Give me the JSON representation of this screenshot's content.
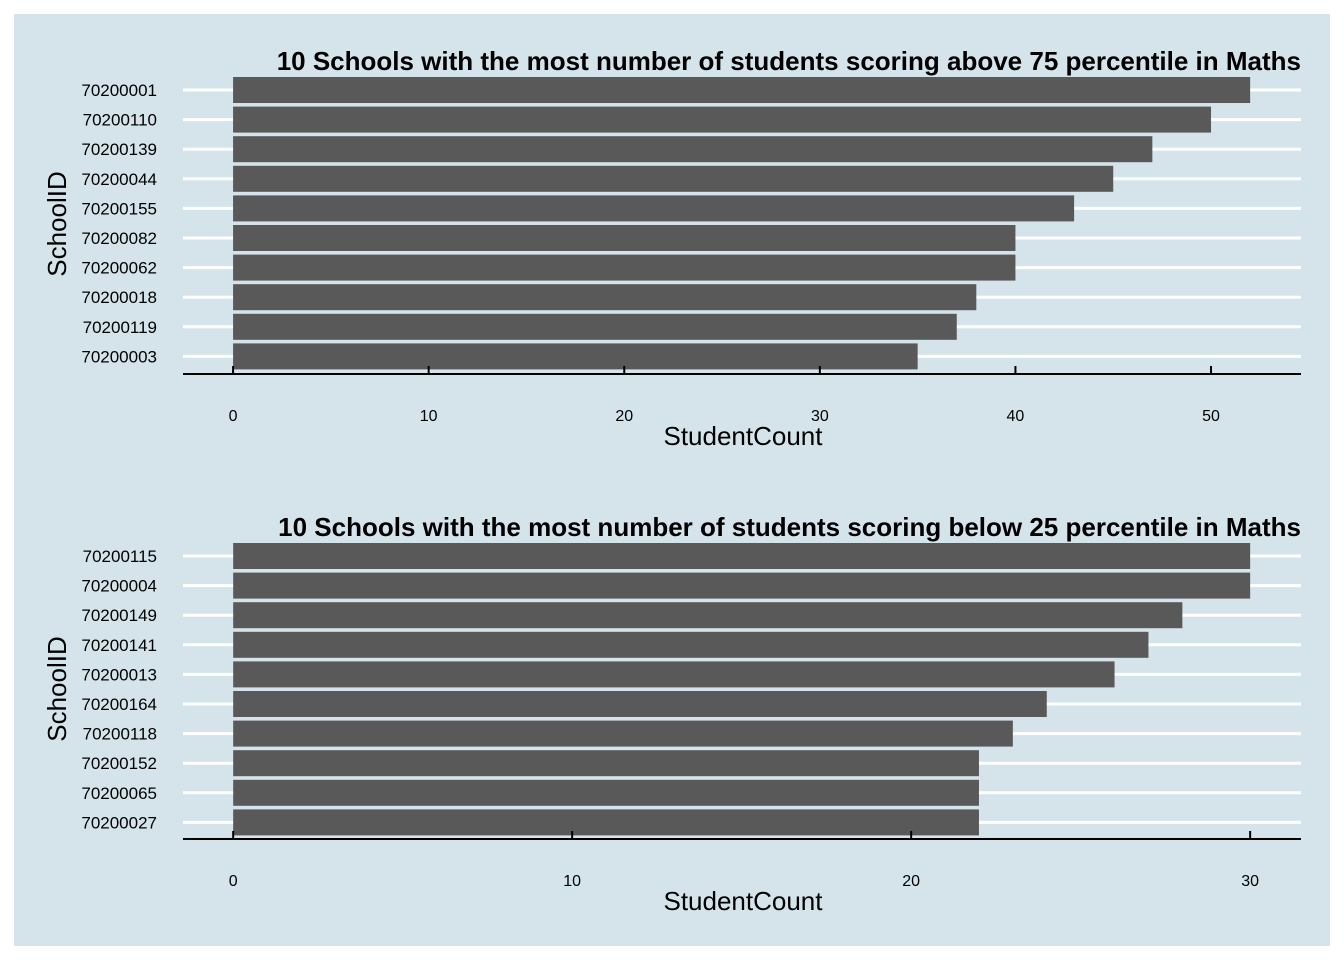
{
  "colors": {
    "background": "#d5e4eb",
    "bar": "#595959",
    "gridline": "#ffffff",
    "axis": "#000000",
    "text": "#000000"
  },
  "chart_data": [
    {
      "type": "bar",
      "orientation": "horizontal",
      "title": "10 Schools with the most number of students scoring above 75 percentile in Maths",
      "xlabel": "StudentCount",
      "ylabel": "SchoolID",
      "categories": [
        "70200001",
        "70200110",
        "70200139",
        "70200044",
        "70200155",
        "70200082",
        "70200062",
        "70200018",
        "70200119",
        "70200003"
      ],
      "values": [
        52,
        50,
        47,
        45,
        43,
        40,
        40,
        38,
        37,
        35
      ],
      "xticks": [
        0,
        10,
        20,
        30,
        40,
        50
      ],
      "xtick_labels": [
        "0",
        "10",
        "20",
        "30",
        "40",
        "50"
      ],
      "xlim": [
        -2.56,
        54.6
      ],
      "grid": "horizontal"
    },
    {
      "type": "bar",
      "orientation": "horizontal",
      "title": "10 Schools with the most number of students scoring below 25 percentile in Maths",
      "xlabel": "StudentCount",
      "ylabel": "SchoolID",
      "categories": [
        "70200115",
        "70200004",
        "70200149",
        "70200141",
        "70200013",
        "70200164",
        "70200118",
        "70200152",
        "70200065",
        "70200027"
      ],
      "values": [
        30,
        30,
        28,
        27,
        26,
        24,
        23,
        22,
        22,
        22
      ],
      "xticks": [
        0,
        10,
        20,
        30
      ],
      "xtick_labels": [
        "0",
        "10",
        "20",
        "30"
      ],
      "xlim": [
        -1.48,
        31.5
      ],
      "grid": "horizontal"
    }
  ]
}
